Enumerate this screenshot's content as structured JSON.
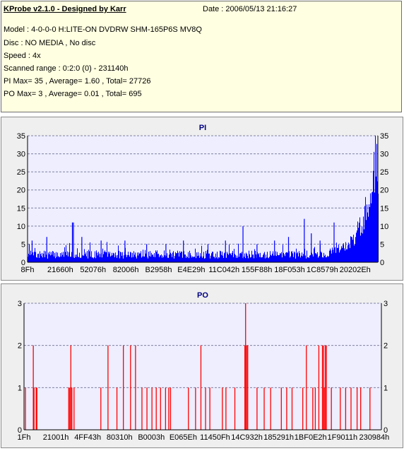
{
  "header": {
    "title": "KProbe v2.1.0 - Designed by Karr",
    "date": "Date : 2006/05/13 21:16:27",
    "model": "Model : 4-0-0-0 H:LITE-ON DVDRW SHM-165P6S MV8Q",
    "disc": "Disc : NO MEDIA , No disc",
    "speed": "Speed : 4x",
    "range": "Scanned range : 0:2:0 (0) - 231140h",
    "pi_summary": "PI Max= 35 , Average= 1.60 , Total= 27726",
    "po_summary": "PO Max= 3 , Average= 0.01 , Total= 695"
  },
  "chart_data": [
    {
      "type": "bar",
      "title": "PI",
      "ylim": [
        0,
        35
      ],
      "yticks": [
        0,
        5,
        10,
        15,
        20,
        25,
        30,
        35
      ],
      "xtick_labels": [
        "8Fh",
        "21660h",
        "52076h",
        "82006h",
        "B2958h",
        "E4E29h",
        "11C042h",
        "155F88h",
        "18F053h",
        "1C8579h",
        "20202Eh"
      ],
      "grid": true,
      "color": "#0000ff",
      "max": 35,
      "average": 1.6,
      "total": 27726,
      "spikes": [
        {
          "x": 0.005,
          "y": 5
        },
        {
          "x": 0.013,
          "y": 6
        },
        {
          "x": 0.055,
          "y": 7
        },
        {
          "x": 0.128,
          "y": 11
        },
        {
          "x": 0.131,
          "y": 11
        },
        {
          "x": 0.155,
          "y": 7
        },
        {
          "x": 0.21,
          "y": 6
        },
        {
          "x": 0.278,
          "y": 6
        },
        {
          "x": 0.34,
          "y": 5
        },
        {
          "x": 0.395,
          "y": 5
        },
        {
          "x": 0.445,
          "y": 6
        },
        {
          "x": 0.515,
          "y": 5
        },
        {
          "x": 0.565,
          "y": 6
        },
        {
          "x": 0.615,
          "y": 10
        },
        {
          "x": 0.655,
          "y": 5
        },
        {
          "x": 0.705,
          "y": 6
        },
        {
          "x": 0.745,
          "y": 7
        },
        {
          "x": 0.79,
          "y": 12
        },
        {
          "x": 0.81,
          "y": 8
        },
        {
          "x": 0.835,
          "y": 6
        },
        {
          "x": 0.875,
          "y": 11
        }
      ],
      "ramp": [
        {
          "x": 0.86,
          "y": 4
        },
        {
          "x": 0.9,
          "y": 5
        },
        {
          "x": 0.93,
          "y": 8
        },
        {
          "x": 0.955,
          "y": 14
        },
        {
          "x": 0.97,
          "y": 20
        },
        {
          "x": 0.985,
          "y": 28
        },
        {
          "x": 0.993,
          "y": 35
        },
        {
          "x": 1.0,
          "y": 33
        }
      ]
    },
    {
      "type": "bar",
      "title": "PO",
      "ylim": [
        0,
        3
      ],
      "yticks": [
        0,
        1,
        2,
        3
      ],
      "xtick_labels": [
        "1Fh",
        "21001h",
        "4FF43h",
        "80310h",
        "B0003h",
        "E065Eh",
        "11450Fh",
        "14C932h",
        "185291h",
        "1BF0E2h",
        "1F9011h",
        "230984h"
      ],
      "grid": true,
      "color": "#ff0000",
      "max": 3,
      "average": 0.01,
      "total": 695,
      "x": [
        0.004,
        0.026,
        0.028,
        0.034,
        0.036,
        0.125,
        0.128,
        0.131,
        0.134,
        0.14,
        0.215,
        0.235,
        0.26,
        0.278,
        0.298,
        0.312,
        0.33,
        0.344,
        0.358,
        0.37,
        0.382,
        0.396,
        0.405,
        0.41,
        0.46,
        0.48,
        0.495,
        0.508,
        0.52,
        0.555,
        0.565,
        0.59,
        0.618,
        0.62,
        0.623,
        0.626,
        0.652,
        0.672,
        0.69,
        0.72,
        0.735,
        0.75,
        0.78,
        0.79,
        0.808,
        0.815,
        0.825,
        0.835,
        0.838,
        0.84,
        0.843,
        0.846,
        0.86,
        0.885,
        0.9,
        0.915,
        0.932,
        0.942,
        0.968
      ],
      "values": [
        1,
        2,
        1,
        1,
        1,
        1,
        1,
        2,
        1,
        1,
        1,
        2,
        1,
        2,
        2,
        2,
        1,
        1,
        1,
        1,
        1,
        1,
        1,
        1,
        1,
        1,
        2,
        1,
        1,
        1,
        1,
        1,
        2,
        3,
        2,
        2,
        1,
        1,
        1,
        1,
        1,
        1,
        1,
        2,
        1,
        1,
        2,
        2,
        2,
        1,
        2,
        2,
        1,
        1,
        1,
        1,
        1,
        1,
        1
      ]
    }
  ]
}
